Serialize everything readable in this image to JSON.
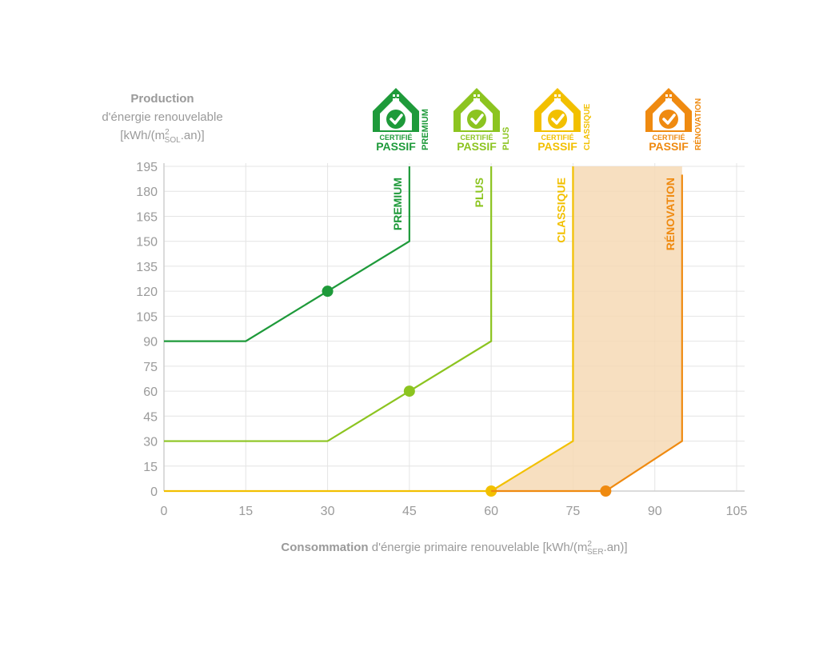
{
  "chart_data": {
    "type": "line",
    "ylabel": {
      "bold": "Production",
      "line2": "d'énergie renouvelable",
      "unit_pre": "[kWh/(m",
      "unit_sup": "2",
      "unit_sub": "SOL",
      "unit_post": ".an)]"
    },
    "xlabel": {
      "bold": "Consommation",
      "rest": " d'énergie primaire renouvelable [kWh/(m",
      "unit_sup": "2",
      "unit_sub": "SER",
      "unit_post": ".an)]"
    },
    "xlim": [
      0,
      105
    ],
    "ylim": [
      0,
      195
    ],
    "xticks": [
      0,
      15,
      30,
      45,
      60,
      75,
      90,
      105
    ],
    "yticks": [
      0,
      15,
      30,
      45,
      60,
      75,
      90,
      105,
      120,
      135,
      150,
      165,
      180,
      195
    ],
    "grid": true,
    "series": [
      {
        "name": "PREMIUM",
        "color": "#1e9a3a",
        "points": [
          [
            0,
            90
          ],
          [
            15,
            90
          ],
          [
            45,
            150
          ],
          [
            45,
            195
          ]
        ],
        "marker": [
          30,
          120
        ]
      },
      {
        "name": "PLUS",
        "color": "#8cc420",
        "points": [
          [
            0,
            30
          ],
          [
            30,
            30
          ],
          [
            60,
            90
          ],
          [
            60,
            195
          ]
        ],
        "marker": [
          45,
          60
        ]
      },
      {
        "name": "CLASSIQUE",
        "color": "#f2c000",
        "points": [
          [
            0,
            0
          ],
          [
            60,
            0
          ],
          [
            75,
            30
          ],
          [
            75,
            195
          ]
        ],
        "marker": [
          60,
          0
        ]
      },
      {
        "name": "RÉNOVATION",
        "color": "#ef8a10",
        "points": [
          [
            60,
            0
          ],
          [
            81,
            0
          ],
          [
            95,
            30
          ],
          [
            95,
            190
          ]
        ],
        "marker": [
          81,
          0
        ]
      }
    ],
    "shaded_region": {
      "color": "#f6d9b5",
      "polygon": [
        [
          60,
          0
        ],
        [
          81,
          0
        ],
        [
          95,
          30
        ],
        [
          95,
          195
        ],
        [
          75,
          195
        ],
        [
          75,
          30
        ]
      ]
    },
    "badges": [
      {
        "series": "PREMIUM",
        "line1": "CERTIFIÉ",
        "line2": "PASSIF",
        "tag": "PREMIUM",
        "color": "#1e9a3a"
      },
      {
        "series": "PLUS",
        "line1": "CERTIFIÉ",
        "line2": "PASSIF",
        "tag": "PLUS",
        "color": "#8cc420"
      },
      {
        "series": "CLASSIQUE",
        "line1": "CERTIFIÉ",
        "line2": "PASSIF",
        "tag": "CLASSIQUE",
        "color": "#f2c000"
      },
      {
        "series": "RÉNOVATION",
        "line1": "CERTIFIÉ",
        "line2": "PASSIF",
        "tag": "RÉNOVATION",
        "color": "#ef8a10"
      }
    ]
  }
}
